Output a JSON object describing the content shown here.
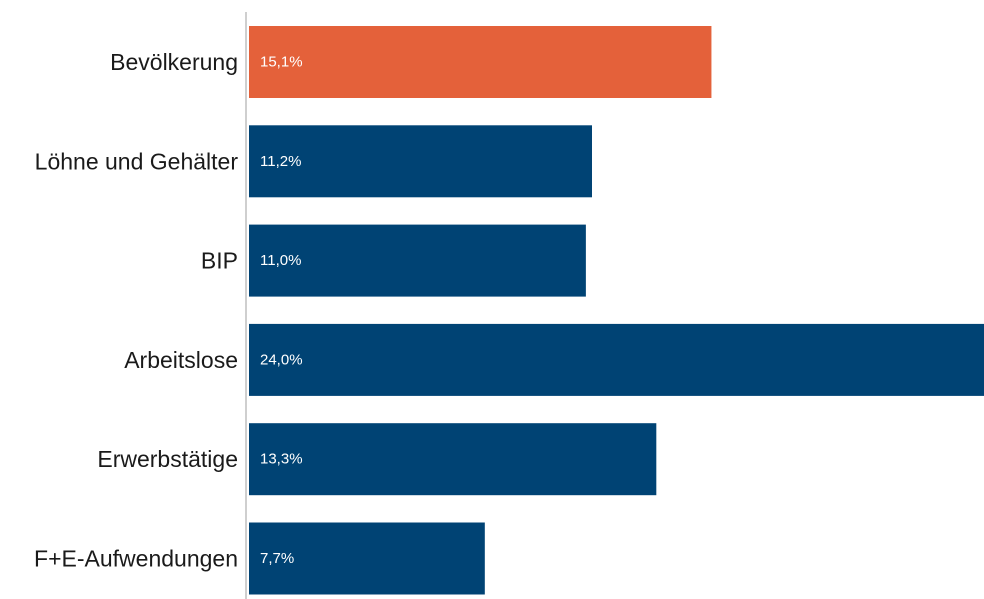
{
  "chart_data": {
    "type": "bar",
    "orientation": "horizontal",
    "categories": [
      "Bevölkerung",
      "Löhne und Gehälter",
      "BIP",
      "Arbeitslose",
      "Erwerbstätige",
      "F+E-Aufwendungen"
    ],
    "values": [
      15.1,
      11.2,
      11.0,
      24.0,
      13.3,
      7.7
    ],
    "value_labels": [
      "15,1%",
      "11,2%",
      "11,0%",
      "24,0%",
      "13,3%",
      "7,7%"
    ],
    "title": "",
    "xlabel": "",
    "ylabel": "",
    "xlim": [
      0,
      24.0
    ],
    "grid": false,
    "legend": "none",
    "colors": {
      "highlight": "#E4613A",
      "default": "#004374",
      "axis": "#cfcfcf"
    },
    "highlight_index": 0
  }
}
